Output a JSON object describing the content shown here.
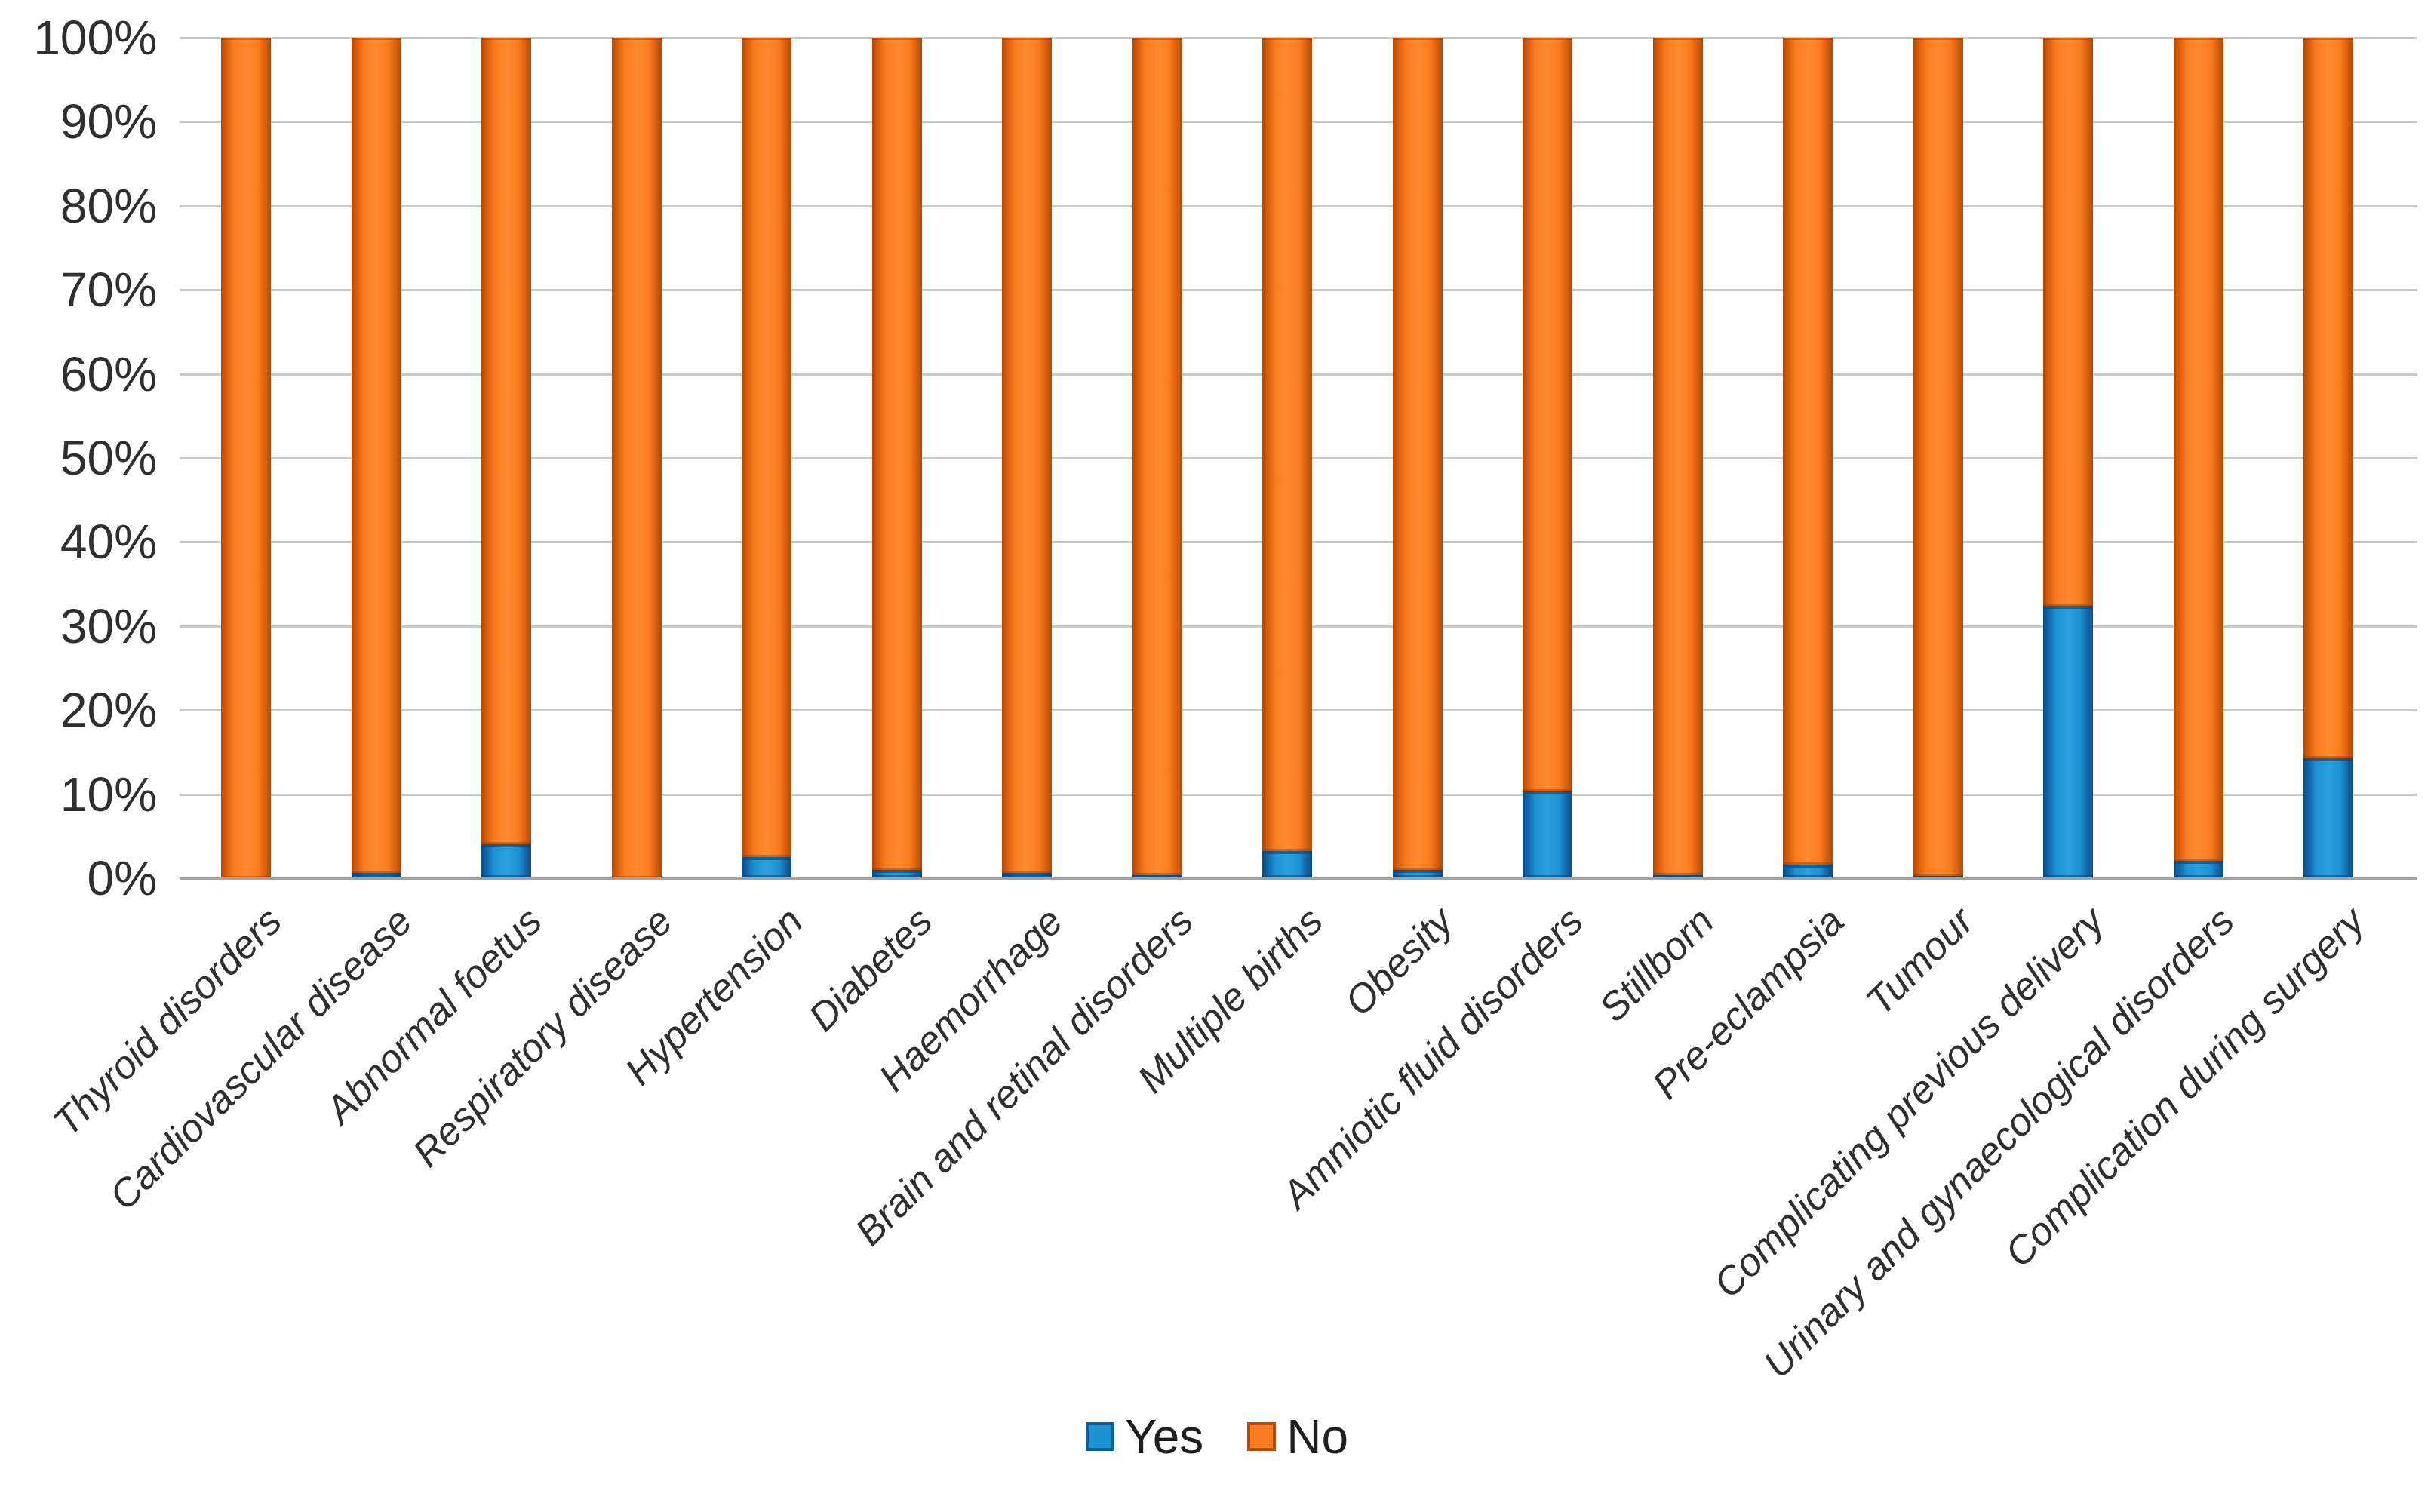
{
  "chart_data": {
    "type": "bar",
    "stacked": true,
    "stacked_mode": "percent",
    "title": "",
    "xlabel": "",
    "ylabel": "",
    "ylim": [
      0,
      100
    ],
    "ytick_step": 10,
    "ytick_labels": [
      "0%",
      "10%",
      "20%",
      "30%",
      "40%",
      "50%",
      "60%",
      "70%",
      "80%",
      "90%",
      "100%"
    ],
    "grid": true,
    "legend_position": "bottom",
    "categories": [
      "Thyroid disorders",
      "Cardiovascular disease",
      "Abnormal foetus",
      "Respiratory disease",
      "Hypertension",
      "Diabetes",
      "Haemorrhage",
      "Brain and retinal disorders",
      "Multiple births",
      "Obesity",
      "Amniotic fluid disorders",
      "Stillborn",
      "Pre-eclampsia",
      "Tumour",
      "Complicating previous delivery",
      "Urinary and gynaecological disorders",
      "Complication during surgery"
    ],
    "series": [
      {
        "name": "Yes",
        "color": "#1e93d2",
        "border_color": "#0e5e97",
        "values": [
          0,
          0.6,
          4.0,
          0,
          2.5,
          1.0,
          0.6,
          0.4,
          3.2,
          1.0,
          10.3,
          0.4,
          1.6,
          0.3,
          32.4,
          2.1,
          14.3
        ]
      },
      {
        "name": "No",
        "color": "#f97c1e",
        "border_color": "#b84a06",
        "values": [
          100,
          99.4,
          96.0,
          100,
          97.5,
          99.0,
          99.4,
          99.6,
          96.8,
          99.0,
          89.7,
          99.6,
          98.4,
          99.7,
          67.6,
          97.9,
          85.7
        ]
      }
    ]
  },
  "colors": {
    "gridline": "#c9c9c9",
    "axis_line": "#a2a2a2",
    "tick_text": "#2f2f2f",
    "background": "#ffffff"
  }
}
